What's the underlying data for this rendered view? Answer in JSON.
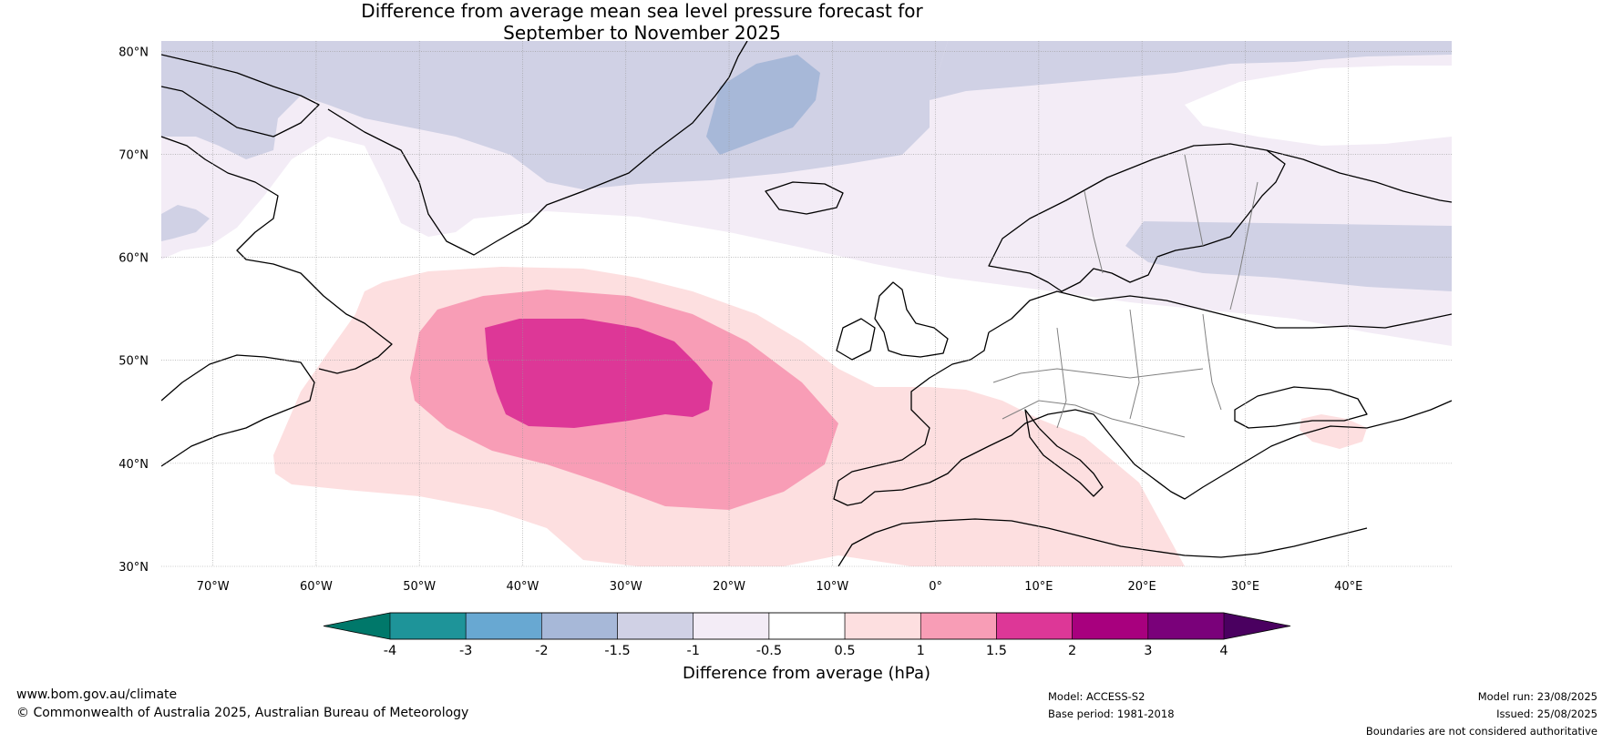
{
  "title_line1": "Difference from average mean sea level pressure forecast for",
  "title_line2": "September to November 2025",
  "map": {
    "projection": "equirectangular",
    "lon_range": [
      -75,
      50
    ],
    "lat_range": [
      30,
      81
    ],
    "lon_ticks": [
      "70°W",
      "60°W",
      "50°W",
      "40°W",
      "30°W",
      "20°W",
      "10°W",
      "0°",
      "10°E",
      "20°E",
      "30°E",
      "40°E"
    ],
    "lat_ticks": [
      "80°N",
      "70°N",
      "60°N",
      "50°N",
      "40°N",
      "30°N"
    ],
    "ocean_color": "#ffffff",
    "coastline_color": "#000000",
    "border_color": "#808080"
  },
  "colorbar": {
    "title": "Difference from average (hPa)",
    "tick_labels": [
      "-4",
      "-3",
      "-2",
      "-1.5",
      "-1",
      "-0.5",
      "0.5",
      "1",
      "1.5",
      "2",
      "3",
      "4"
    ],
    "under_color": "#00786a",
    "over_color": "#4a0060",
    "bin_colors": [
      "#1e9499",
      "#68a8d2",
      "#a7b8d8",
      "#d0d1e5",
      "#f3ecf6",
      "#ffffff",
      "#fddfe0",
      "#f89db6",
      "#dd3797",
      "#a8007e",
      "#7a017a"
    ]
  },
  "footer": {
    "website": "www.bom.gov.au/climate",
    "copyright": "© Commonwealth of Australia 2025, Australian Bureau of Meteorology",
    "model": "Model: ACCESS-S2",
    "base_period": "Base period: 1981-2018",
    "model_run": "Model run: 23/08/2025",
    "issued": "Issued: 25/08/2025",
    "disclaimer": "Boundaries are not considered authoritative"
  }
}
